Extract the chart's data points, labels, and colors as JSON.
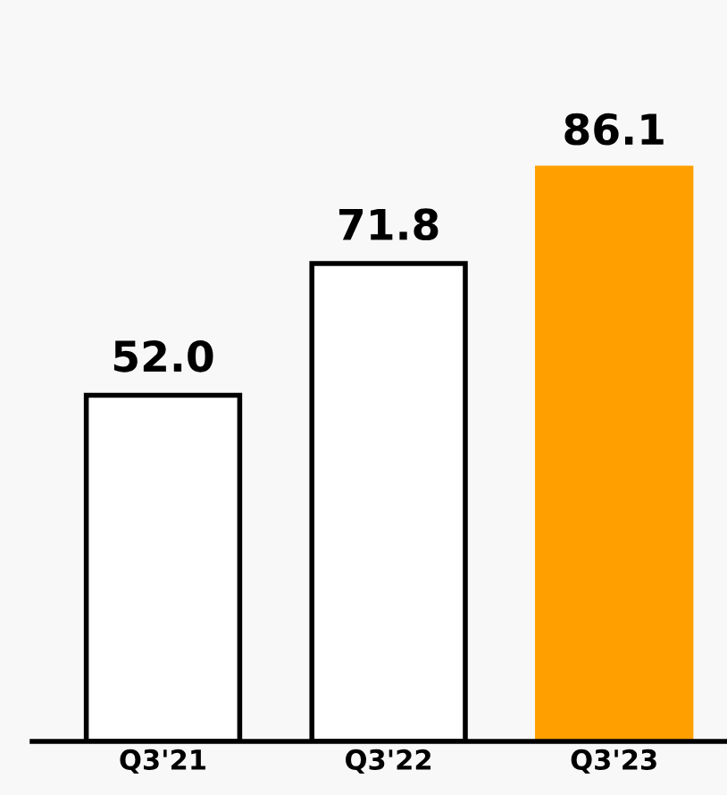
{
  "chart_data": {
    "type": "bar",
    "categories": [
      "Q3'21",
      "Q3'22",
      "Q3'23"
    ],
    "values": [
      52.0,
      71.8,
      86.1
    ],
    "colors": [
      "#ffffff",
      "#ffffff",
      "#ffa000"
    ],
    "value_labels": [
      "52.0",
      "71.8",
      "86.1"
    ],
    "grid": false,
    "legend": false
  }
}
